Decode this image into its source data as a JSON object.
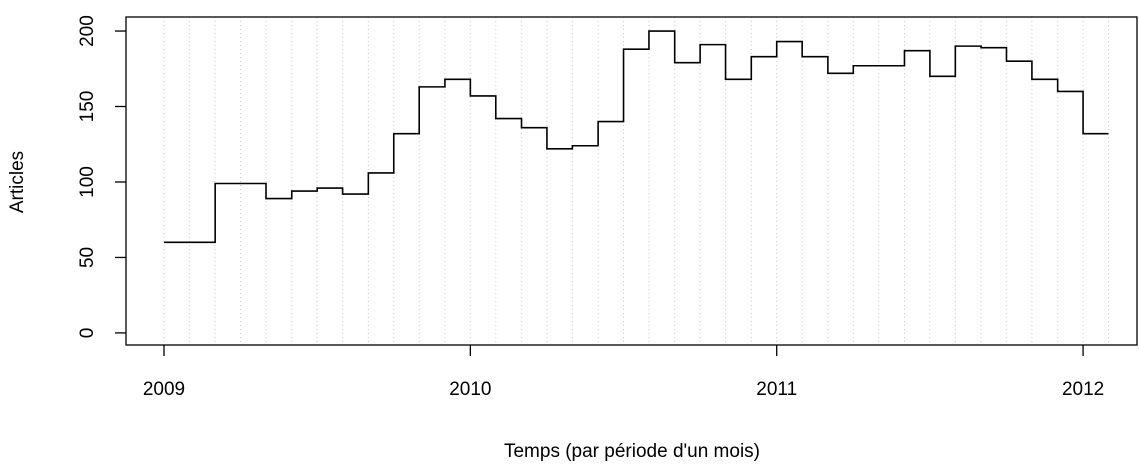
{
  "chart_data": {
    "type": "step",
    "xlabel": "Temps (par période d'un mois)",
    "ylabel": "Articles",
    "x": [
      2009,
      2009.083,
      2009.167,
      2009.25,
      2009.333,
      2009.417,
      2009.5,
      2009.583,
      2009.667,
      2009.75,
      2009.833,
      2009.917,
      2010,
      2010.083,
      2010.167,
      2010.25,
      2010.333,
      2010.417,
      2010.5,
      2010.583,
      2010.667,
      2010.75,
      2010.833,
      2010.917,
      2011,
      2011.083,
      2011.167,
      2011.25,
      2011.333,
      2011.417,
      2011.5,
      2011.583,
      2011.667,
      2011.75,
      2011.833,
      2011.917,
      2012,
      2012.083
    ],
    "series": [
      {
        "name": "Articles",
        "color": "#000000",
        "values": [
          60,
          60,
          99,
          99,
          89,
          94,
          96,
          92,
          106,
          132,
          163,
          168,
          157,
          142,
          136,
          122,
          124,
          140,
          188,
          200,
          179,
          191,
          168,
          183,
          193,
          183,
          172,
          177,
          177,
          187,
          170,
          190,
          189,
          180,
          168,
          160,
          132,
          132
        ]
      }
    ],
    "xlim": [
      2008.876,
      2012.176
    ],
    "xticks": [
      2009,
      2010,
      2011,
      2012
    ],
    "ylim": [
      -8,
      209.3
    ],
    "yticks": [
      0,
      50,
      100,
      150,
      200
    ],
    "grid": true
  }
}
